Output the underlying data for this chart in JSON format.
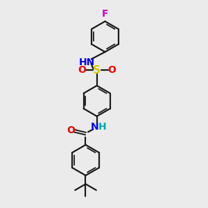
{
  "bg_color": "#ebebeb",
  "bond_color": "#1a1a1a",
  "bond_width": 1.6,
  "colors": {
    "N": "#0000ee",
    "O": "#ee0000",
    "S": "#cccc00",
    "F": "#cc00cc",
    "C": "#1a1a1a",
    "H_color": "#00aaaa"
  },
  "font_size": 10,
  "ring_r": 0.75
}
